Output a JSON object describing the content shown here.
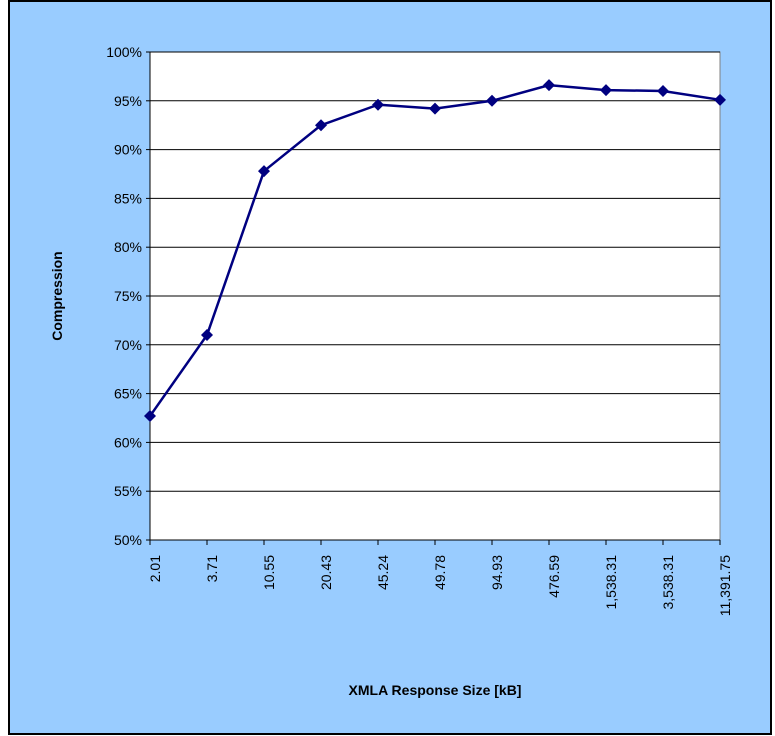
{
  "chart_data": {
    "type": "line",
    "x_label": "XMLA Response Size [kB]",
    "y_label": "Compression",
    "categories": [
      "2.01",
      "3.71",
      "10.55",
      "20.43",
      "45.24",
      "49.78",
      "94.93",
      "476.59",
      "1,538.31",
      "3,538.31",
      "11,391.75"
    ],
    "series": [
      {
        "name": "Compression",
        "color": "#000080",
        "values": [
          62.7,
          71.0,
          87.8,
          92.5,
          94.6,
          94.2,
          95.0,
          96.6,
          96.1,
          96.0,
          95.1
        ]
      }
    ],
    "ylim": [
      50,
      100
    ],
    "yticks": [
      {
        "value": 50,
        "label": "50%"
      },
      {
        "value": 55,
        "label": "55%"
      },
      {
        "value": 60,
        "label": "60%"
      },
      {
        "value": 65,
        "label": "65%"
      },
      {
        "value": 70,
        "label": "70%"
      },
      {
        "value": 75,
        "label": "75%"
      },
      {
        "value": 80,
        "label": "80%"
      },
      {
        "value": 85,
        "label": "85%"
      },
      {
        "value": 90,
        "label": "90%"
      },
      {
        "value": 95,
        "label": "95%"
      },
      {
        "value": 100,
        "label": "100%"
      }
    ],
    "grid": true,
    "legend": false
  }
}
